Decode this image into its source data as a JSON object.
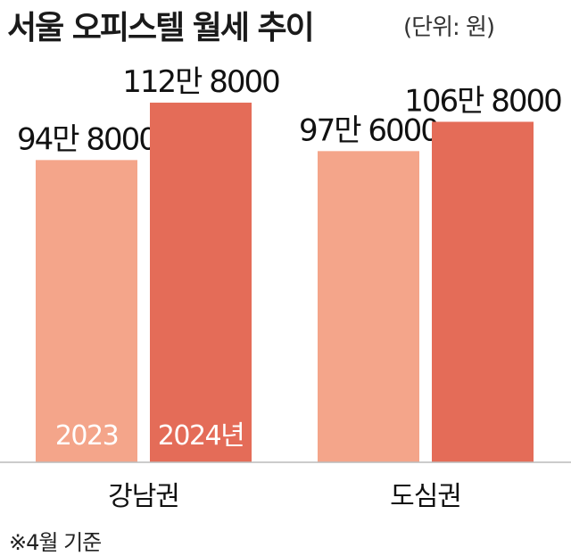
{
  "chart_data": {
    "type": "bar",
    "title": "서울 오피스텔 월세 추이",
    "unit": "(단위: 원)",
    "categories": [
      "강남권",
      "도심권"
    ],
    "series": [
      {
        "name": "2023",
        "color": "#F4A58A",
        "values": [
          948000,
          976000
        ],
        "value_labels": [
          "94만 8000",
          "97만 6000"
        ]
      },
      {
        "name": "2024년",
        "color": "#E46C58",
        "values": [
          1128000,
          1068000
        ],
        "value_labels": [
          "112만 8000",
          "106만 8000"
        ]
      }
    ],
    "ylim": [
      0,
      1450000
    ],
    "footnote": "※4월 기준",
    "colors": {
      "axis": "#bbbbbb",
      "label": "#111111",
      "series_label": "#ffffff"
    }
  }
}
